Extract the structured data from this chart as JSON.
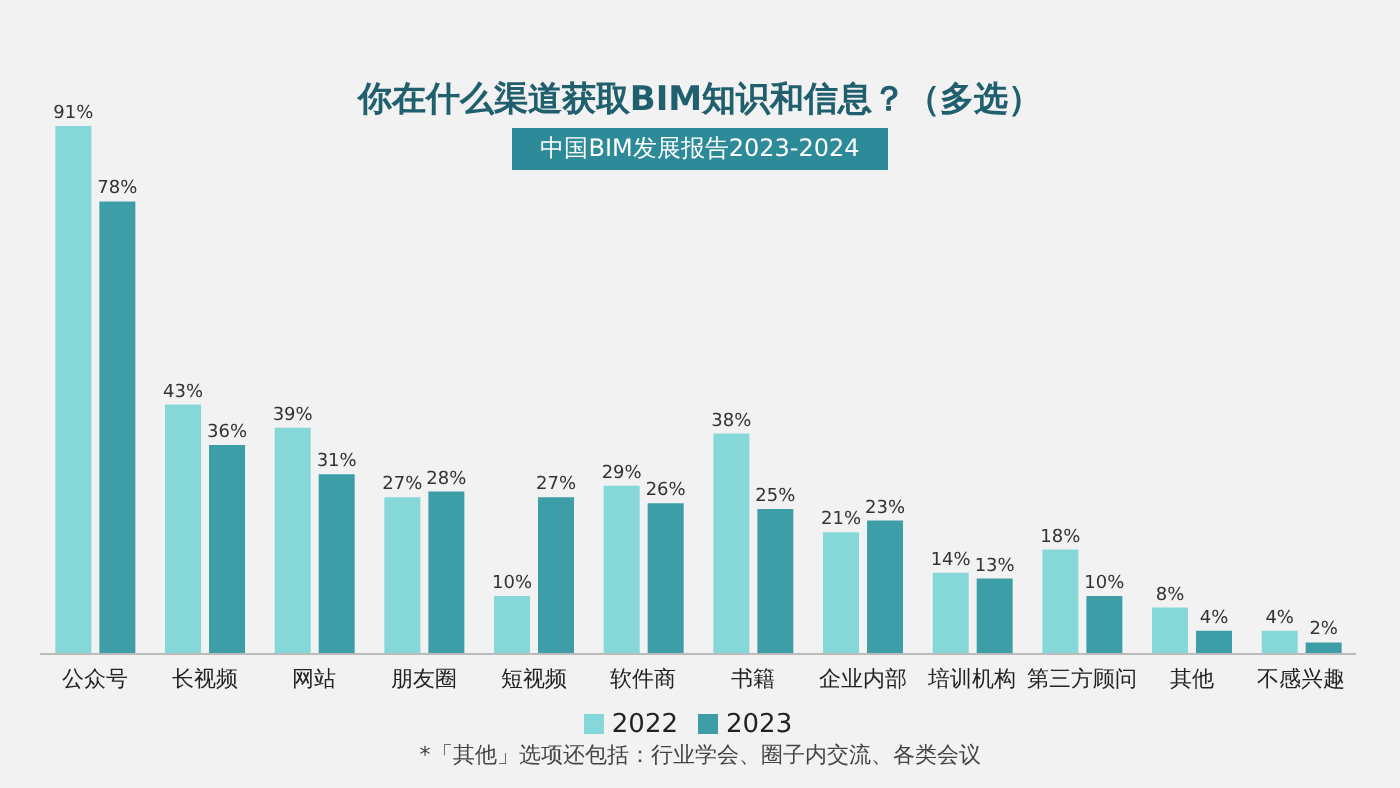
{
  "chart_data": {
    "type": "bar",
    "title": "你在什么渠道获取BIM知识和信息？（多选）",
    "subtitle": "中国BIM发展报告2023-2024",
    "categories": [
      "公众号",
      "长视频",
      "网站",
      "朋友圈",
      "短视频",
      "软件商",
      "书籍",
      "企业内部",
      "培训机构",
      "第三方顾问",
      "其他",
      "不感兴趣"
    ],
    "series": [
      {
        "name": "2022",
        "color": "#86d8d8",
        "values": [
          91,
          43,
          39,
          27,
          10,
          29,
          38,
          21,
          14,
          18,
          8,
          4
        ],
        "value_labels": [
          "91%",
          "43%",
          "39%",
          "27%",
          "10%",
          "29%",
          "38%",
          "21%",
          "14%",
          "18%",
          "8%",
          "4%"
        ]
      },
      {
        "name": "2023",
        "color": "#3e9ea8",
        "values": [
          78,
          36,
          31,
          28,
          27,
          26,
          25,
          23,
          13,
          10,
          4,
          2
        ],
        "value_labels": [
          "78%",
          "36%",
          "31%",
          "28%",
          "27%",
          "26%",
          "25%",
          "23%",
          "13%",
          "10%",
          "4%",
          "2%"
        ]
      }
    ],
    "legend": "bottom",
    "tick_labels": "x",
    "annotations": [
      "*「其他」选项还包括：行业学会、圈子内交流、各类会议"
    ]
  }
}
